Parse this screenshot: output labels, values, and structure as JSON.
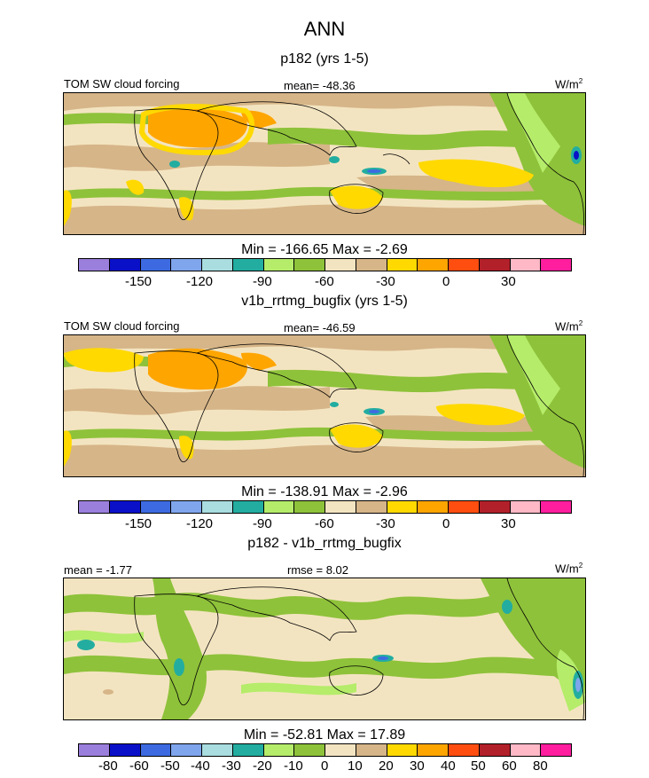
{
  "title": "ANN",
  "panels": [
    {
      "subtitle": "p182 (yrs 1-5)",
      "left_label": "TOM SW cloud forcing",
      "center_label": "mean= -48.36",
      "units": "W/m",
      "units_sup": "2",
      "minmax": "Min = -166.65 Max =  -2.69",
      "ticks": [
        "-150",
        "-120",
        "-90",
        "-60",
        "-30",
        "0",
        "30"
      ]
    },
    {
      "subtitle": "v1b_rrtmg_bugfix (yrs 1-5)",
      "left_label": "TOM SW cloud forcing",
      "center_label": "mean= -46.59",
      "units": "W/m",
      "units_sup": "2",
      "minmax": "Min = -138.91 Max =  -2.96",
      "ticks": [
        "-150",
        "-120",
        "-90",
        "-60",
        "-30",
        "0",
        "30"
      ]
    },
    {
      "subtitle": "p182 - v1b_rrtmg_bugfix",
      "left_label": "mean =  -1.77",
      "center_label": "rmse =  8.02",
      "units": "W/m",
      "units_sup": "2",
      "minmax": "Min = -52.81 Max =  17.89",
      "ticks": [
        "-80",
        "-60",
        "-50",
        "-40",
        "-30",
        "-20",
        "-10",
        "0",
        "10",
        "20",
        "30",
        "40",
        "50",
        "60",
        "80"
      ]
    }
  ],
  "colors": {
    "abs_palette": [
      "#9b7fdc",
      "#0a10c8",
      "#3d6ae0",
      "#7fa5ec",
      "#a9dde0",
      "#22ada0",
      "#b5ec6a",
      "#8ec23a",
      "#f3e4c1",
      "#d6b588",
      "#ffd900",
      "#ffa500",
      "#ff4e10",
      "#b2202a",
      "#ffb8c6",
      "#ff1e9e"
    ],
    "diff_palette": [
      "#9b7fdc",
      "#0a10c8",
      "#3d6ae0",
      "#7fa5ec",
      "#a9dde0",
      "#22ada0",
      "#b5ec6a",
      "#8ec23a",
      "#f3e4c1",
      "#d6b588",
      "#ffd900",
      "#ffa500",
      "#ff4e10",
      "#b2202a",
      "#ffb8c6",
      "#ff1e9e"
    ]
  }
}
